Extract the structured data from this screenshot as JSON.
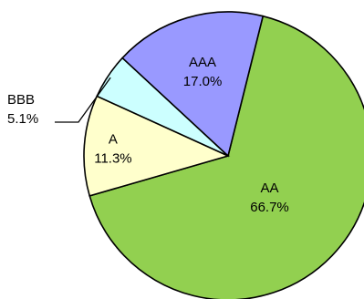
{
  "chart_data": {
    "type": "pie",
    "start_angle_deg": -76,
    "direction": "clockwise",
    "slices": [
      {
        "label": "AA",
        "percent_label": "66.7%",
        "value": 66.7,
        "color": "#92d050"
      },
      {
        "label": "A",
        "percent_label": "11.3%",
        "value": 11.3,
        "color": "#ffffcc"
      },
      {
        "label": "BBB",
        "percent_label": "5.1%",
        "value": 5.1,
        "color": "#ccffff"
      },
      {
        "label": "AAA",
        "percent_label": "17.0%",
        "value": 17.0,
        "color": "#9999ff"
      }
    ],
    "outline_color": "#000000",
    "label_color": "#000000"
  }
}
